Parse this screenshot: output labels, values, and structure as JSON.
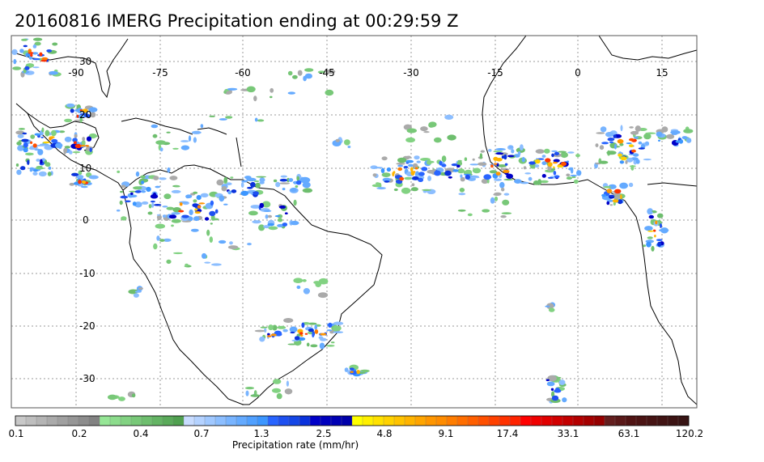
{
  "title": "20160816 IMERG Precipitation ending at 00:29:59 Z",
  "map": {
    "longitude_labels": [
      "-90",
      "-75",
      "-60",
      "-45",
      "-30",
      "-15",
      "0",
      "15"
    ],
    "latitude_labels": [
      "30",
      "20",
      "10",
      "0",
      "-10",
      "-20",
      "-30"
    ],
    "gridlines": "dashed",
    "region": "Tropical Atlantic, South America, West Africa"
  },
  "colorbar": {
    "label": "Precipitation rate (mm/hr)",
    "tick_labels": [
      "0.1",
      "0.2",
      "0.4",
      "0.7",
      "1.3",
      "2.5",
      "4.8",
      "9.1",
      "17.4",
      "33.1",
      "63.1",
      "120.2"
    ],
    "colors": [
      "#c8c8c8",
      "#bebebe",
      "#b4b4b4",
      "#aaaaaa",
      "#a0a0a0",
      "#969696",
      "#8c8c8c",
      "#828282",
      "#96e696",
      "#8cdc8c",
      "#82d282",
      "#78c878",
      "#6ebe6e",
      "#64b464",
      "#5aaa5a",
      "#50a050",
      "#c8dcff",
      "#b4d2ff",
      "#a0c8ff",
      "#8cbeff",
      "#78b4ff",
      "#64aaff",
      "#50a0ff",
      "#3c96ff",
      "#2864ff",
      "#1e50f0",
      "#1446e6",
      "#0a32dc",
      "#0000c8",
      "#0000be",
      "#0000b4",
      "#0000aa",
      "#ffff00",
      "#fff000",
      "#ffe100",
      "#ffd200",
      "#ffc300",
      "#ffb400",
      "#ffa500",
      "#ff9600",
      "#ff8c00",
      "#ff7d00",
      "#ff6e00",
      "#ff5f00",
      "#ff5000",
      "#ff4100",
      "#ff3200",
      "#ff2300",
      "#ff0000",
      "#f00000",
      "#e10000",
      "#d20000",
      "#c30000",
      "#b40000",
      "#a50000",
      "#960000",
      "#641e1e",
      "#5a1919",
      "#501414",
      "#4b1414",
      "#461414",
      "#411414",
      "#3c1414",
      "#371414"
    ]
  }
}
